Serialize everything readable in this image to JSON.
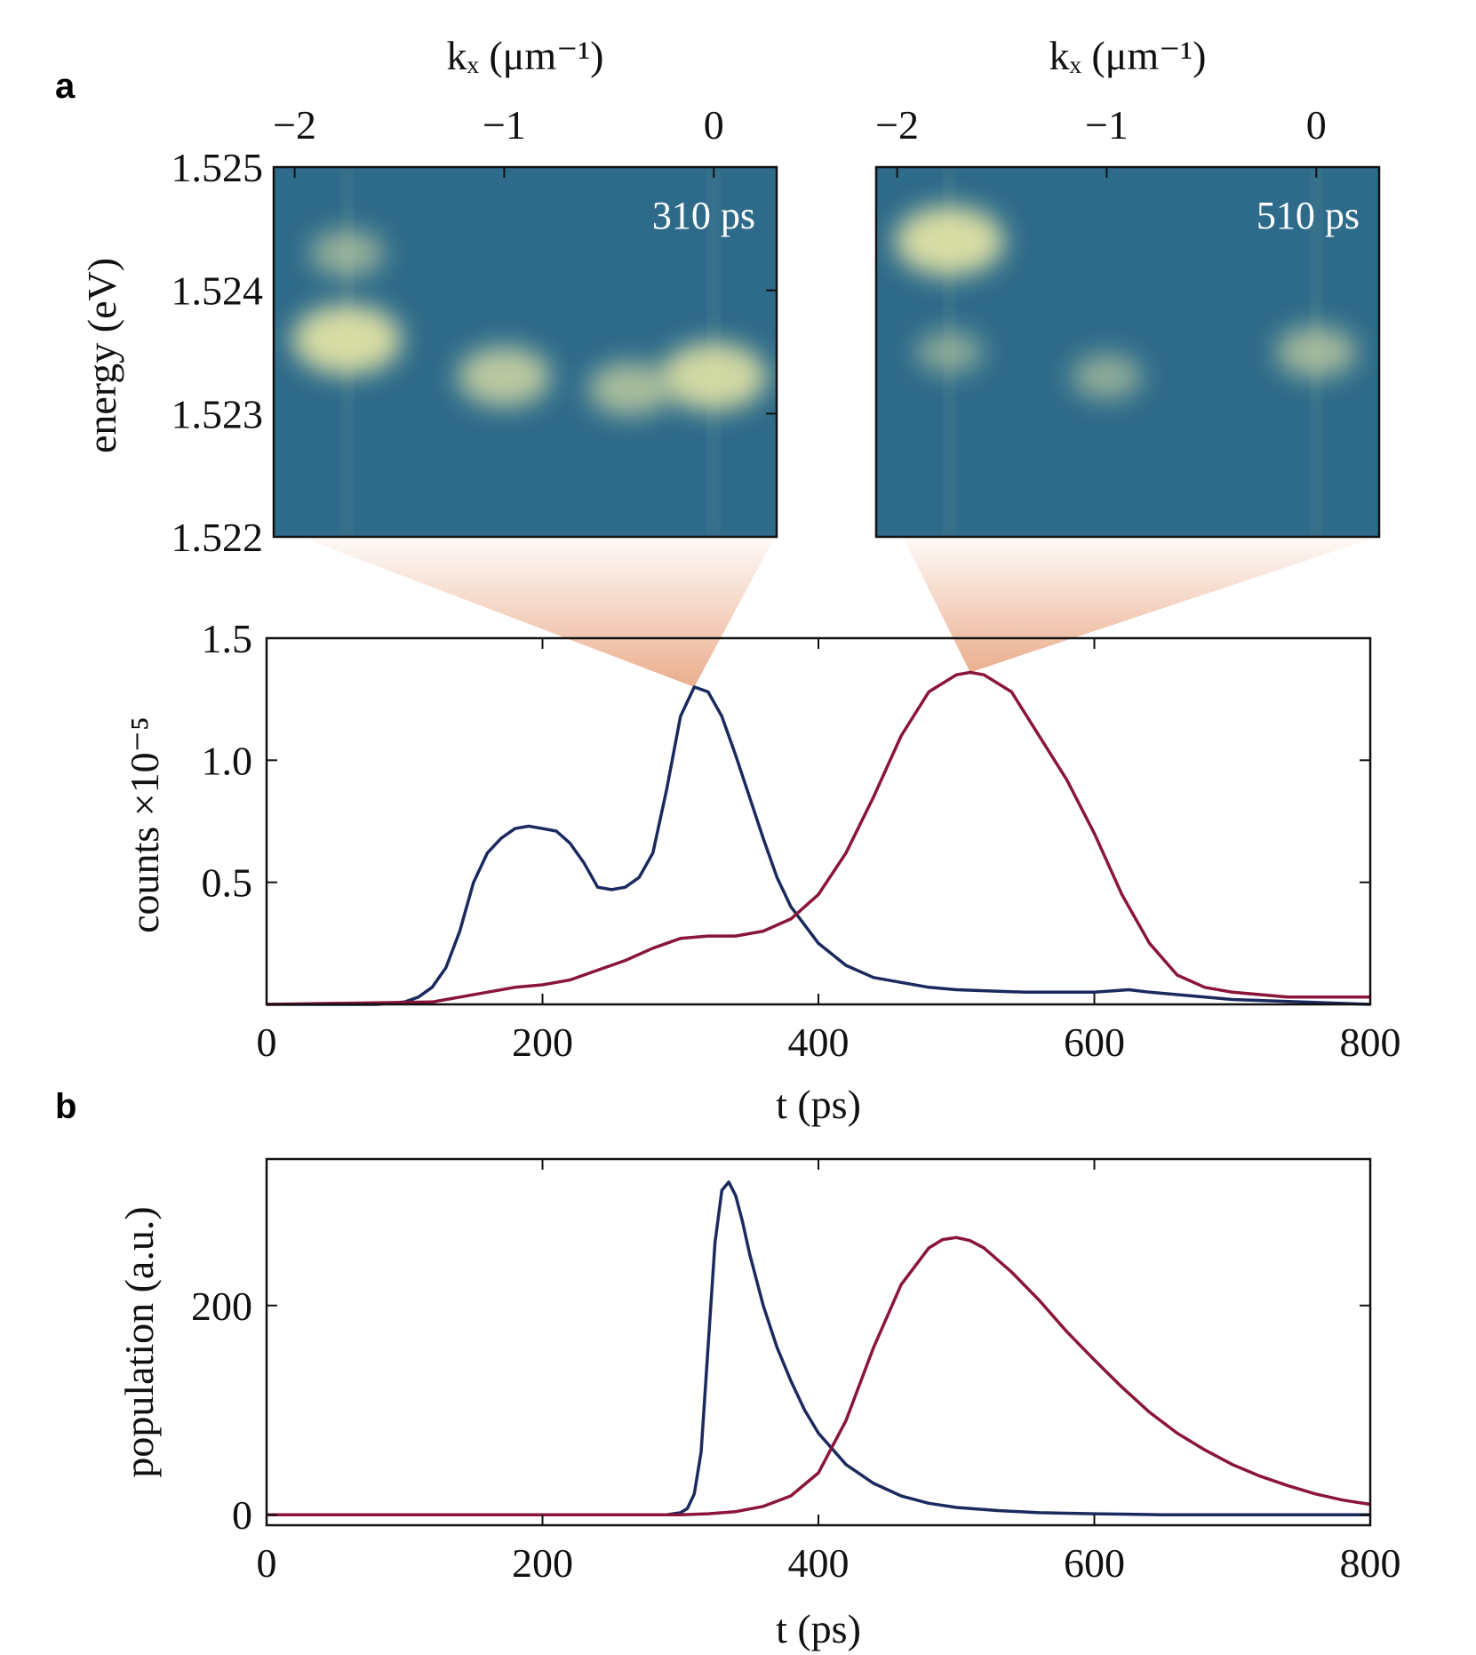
{
  "panel_labels": {
    "a": "a",
    "b": "b"
  },
  "colors": {
    "blue": "#1b2a5e",
    "red": "#8a1538",
    "map_bg": "#2e6b8a",
    "map_hi": "#f5f0a8",
    "fan": "#e8a07a"
  },
  "chart_data": [
    {
      "id": "a-left-map",
      "type": "heatmap",
      "annotation": "310 ps",
      "xlabel": "kₓ (μm⁻¹)",
      "ylabel": "energy (eV)",
      "xlim": [
        -2.1,
        0.3
      ],
      "ylim": [
        1.522,
        1.525
      ],
      "xticks": [
        -2,
        -1,
        0
      ],
      "xtick_labels": [
        "−2",
        "−1",
        "0"
      ],
      "yticks": [
        1.522,
        1.523,
        1.524,
        1.525
      ],
      "ytick_labels": [
        "1.522",
        "1.523",
        "1.524",
        "1.525"
      ],
      "features": [
        {
          "k": -1.75,
          "e": 1.5243,
          "intensity": 0.45
        },
        {
          "k": -1.75,
          "e": 1.5236,
          "intensity": 1.0
        },
        {
          "k": -1.0,
          "e": 1.5233,
          "intensity": 0.75
        },
        {
          "k": -0.4,
          "e": 1.5232,
          "intensity": 0.6
        },
        {
          "k": 0.0,
          "e": 1.5233,
          "intensity": 0.95
        }
      ]
    },
    {
      "id": "a-right-map",
      "type": "heatmap",
      "annotation": "510 ps",
      "xlabel": "kₓ (μm⁻¹)",
      "xlim": [
        -2.1,
        0.3
      ],
      "ylim": [
        1.522,
        1.525
      ],
      "xticks": [
        -2,
        -1,
        0
      ],
      "xtick_labels": [
        "−2",
        "−1",
        "0"
      ],
      "features": [
        {
          "k": -1.75,
          "e": 1.5244,
          "intensity": 1.0
        },
        {
          "k": -1.75,
          "e": 1.5235,
          "intensity": 0.35
        },
        {
          "k": -1.0,
          "e": 1.5233,
          "intensity": 0.4
        },
        {
          "k": 0.0,
          "e": 1.5235,
          "intensity": 0.55
        }
      ]
    },
    {
      "id": "a-counts",
      "type": "line",
      "xlabel": "t (ps)",
      "ylabel": "counts ×10⁻⁵",
      "xlim": [
        0,
        800
      ],
      "ylim": [
        0,
        1.5
      ],
      "xticks": [
        0,
        200,
        400,
        600,
        800
      ],
      "xtick_labels": [
        "0",
        "200",
        "400",
        "600",
        "800"
      ],
      "yticks": [
        0.5,
        1.0,
        1.5
      ],
      "ytick_labels": [
        "0.5",
        "1.0",
        "1.5"
      ],
      "highlights": [
        {
          "t": 310,
          "y": 1.3,
          "map": "left"
        },
        {
          "t": 510,
          "y": 1.36,
          "map": "right"
        }
      ],
      "series": [
        {
          "color": "blue",
          "x": [
            0,
            80,
            100,
            110,
            120,
            130,
            140,
            150,
            160,
            170,
            180,
            190,
            200,
            210,
            220,
            230,
            240,
            250,
            260,
            270,
            280,
            290,
            300,
            310,
            320,
            330,
            340,
            350,
            360,
            370,
            380,
            400,
            420,
            440,
            460,
            480,
            500,
            550,
            600,
            625,
            640,
            700,
            750,
            800
          ],
          "y": [
            0,
            0,
            0.01,
            0.03,
            0.07,
            0.15,
            0.3,
            0.5,
            0.62,
            0.68,
            0.72,
            0.73,
            0.72,
            0.71,
            0.66,
            0.58,
            0.48,
            0.47,
            0.48,
            0.52,
            0.62,
            0.88,
            1.18,
            1.3,
            1.28,
            1.18,
            1.02,
            0.85,
            0.68,
            0.52,
            0.4,
            0.25,
            0.16,
            0.11,
            0.09,
            0.07,
            0.06,
            0.05,
            0.05,
            0.06,
            0.05,
            0.02,
            0.01,
            0.0
          ]
        },
        {
          "color": "red",
          "x": [
            0,
            120,
            140,
            160,
            180,
            200,
            220,
            240,
            260,
            280,
            300,
            320,
            340,
            360,
            380,
            400,
            420,
            440,
            460,
            480,
            500,
            510,
            520,
            540,
            560,
            580,
            600,
            620,
            640,
            660,
            680,
            700,
            720,
            740,
            760,
            780,
            800
          ],
          "y": [
            0,
            0.01,
            0.03,
            0.05,
            0.07,
            0.08,
            0.1,
            0.14,
            0.18,
            0.23,
            0.27,
            0.28,
            0.28,
            0.3,
            0.35,
            0.45,
            0.62,
            0.85,
            1.1,
            1.28,
            1.35,
            1.36,
            1.35,
            1.28,
            1.1,
            0.92,
            0.7,
            0.45,
            0.25,
            0.12,
            0.07,
            0.05,
            0.04,
            0.03,
            0.03,
            0.03,
            0.03
          ]
        }
      ]
    },
    {
      "id": "b-population",
      "type": "line",
      "xlabel": "t (ps)",
      "ylabel": "population (a.u.)",
      "xlim": [
        0,
        800
      ],
      "ylim": [
        -10,
        340
      ],
      "xticks": [
        0,
        200,
        400,
        600,
        800
      ],
      "xtick_labels": [
        "0",
        "200",
        "400",
        "600",
        "800"
      ],
      "yticks": [
        0,
        200
      ],
      "ytick_labels": [
        "0",
        "200"
      ],
      "series": [
        {
          "color": "blue",
          "x": [
            0,
            290,
            300,
            305,
            310,
            315,
            320,
            325,
            330,
            335,
            340,
            345,
            350,
            360,
            370,
            380,
            390,
            400,
            420,
            440,
            460,
            480,
            500,
            530,
            560,
            600,
            650,
            700,
            800
          ],
          "y": [
            0,
            0,
            2,
            6,
            20,
            60,
            160,
            260,
            310,
            318,
            305,
            280,
            250,
            200,
            160,
            128,
            100,
            78,
            48,
            30,
            18,
            11,
            7,
            4,
            2,
            1,
            0,
            0,
            0
          ]
        },
        {
          "color": "red",
          "x": [
            0,
            300,
            320,
            340,
            360,
            380,
            400,
            420,
            440,
            460,
            480,
            490,
            500,
            510,
            520,
            540,
            560,
            580,
            600,
            620,
            640,
            660,
            680,
            700,
            720,
            740,
            760,
            780,
            800
          ],
          "y": [
            0,
            0,
            1,
            3,
            8,
            18,
            40,
            90,
            160,
            220,
            255,
            263,
            265,
            262,
            255,
            232,
            205,
            175,
            148,
            122,
            98,
            78,
            62,
            48,
            37,
            28,
            20,
            14,
            10
          ]
        }
      ]
    }
  ]
}
